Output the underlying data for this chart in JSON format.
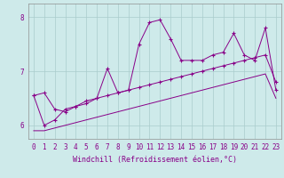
{
  "xlabel": "Windchill (Refroidissement éolien,°C)",
  "background_color": "#ceeaea",
  "grid_color": "#aacccc",
  "line_color": "#880088",
  "x_ticks": [
    0,
    1,
    2,
    3,
    4,
    5,
    6,
    7,
    8,
    9,
    10,
    11,
    12,
    13,
    14,
    15,
    16,
    17,
    18,
    19,
    20,
    21,
    22,
    23
  ],
  "ylim": [
    5.75,
    8.25
  ],
  "xlim": [
    -0.5,
    23.5
  ],
  "series": [
    {
      "x": [
        0,
        1,
        2,
        3,
        4,
        5,
        6,
        7,
        8,
        9,
        10,
        11,
        12,
        13,
        14,
        15,
        16,
        17,
        18,
        19,
        20,
        21,
        22,
        23
      ],
      "y": [
        6.55,
        6.6,
        6.3,
        6.25,
        6.35,
        6.45,
        6.5,
        7.05,
        6.6,
        6.65,
        7.5,
        7.9,
        7.95,
        7.6,
        7.2,
        7.2,
        7.2,
        7.3,
        7.35,
        7.7,
        7.3,
        7.2,
        7.8,
        6.65
      ],
      "marker": true,
      "linestyle": "-"
    },
    {
      "x": [
        0,
        1,
        2,
        3,
        4,
        5,
        6,
        7,
        8,
        9,
        10,
        11,
        12,
        13,
        14,
        15,
        16,
        17,
        18,
        19,
        20,
        21,
        22,
        23
      ],
      "y": [
        6.55,
        6.0,
        6.1,
        6.3,
        6.35,
        6.4,
        6.5,
        6.55,
        6.6,
        6.65,
        6.7,
        6.75,
        6.8,
        6.85,
        6.9,
        6.95,
        7.0,
        7.05,
        7.1,
        7.15,
        7.2,
        7.25,
        7.3,
        6.8
      ],
      "marker": true,
      "linestyle": "-"
    },
    {
      "x": [
        0,
        1,
        2,
        3,
        4,
        5,
        6,
        7,
        8,
        9,
        10,
        11,
        12,
        13,
        14,
        15,
        16,
        17,
        18,
        19,
        20,
        21,
        22,
        23
      ],
      "y": [
        5.9,
        5.9,
        5.95,
        6.0,
        6.05,
        6.1,
        6.15,
        6.2,
        6.25,
        6.3,
        6.35,
        6.4,
        6.45,
        6.5,
        6.55,
        6.6,
        6.65,
        6.7,
        6.75,
        6.8,
        6.85,
        6.9,
        6.95,
        6.5
      ],
      "marker": false,
      "linestyle": "-"
    }
  ],
  "yticks": [
    6,
    7,
    8
  ],
  "tick_fontsize": 5.5,
  "xlabel_fontsize": 6
}
